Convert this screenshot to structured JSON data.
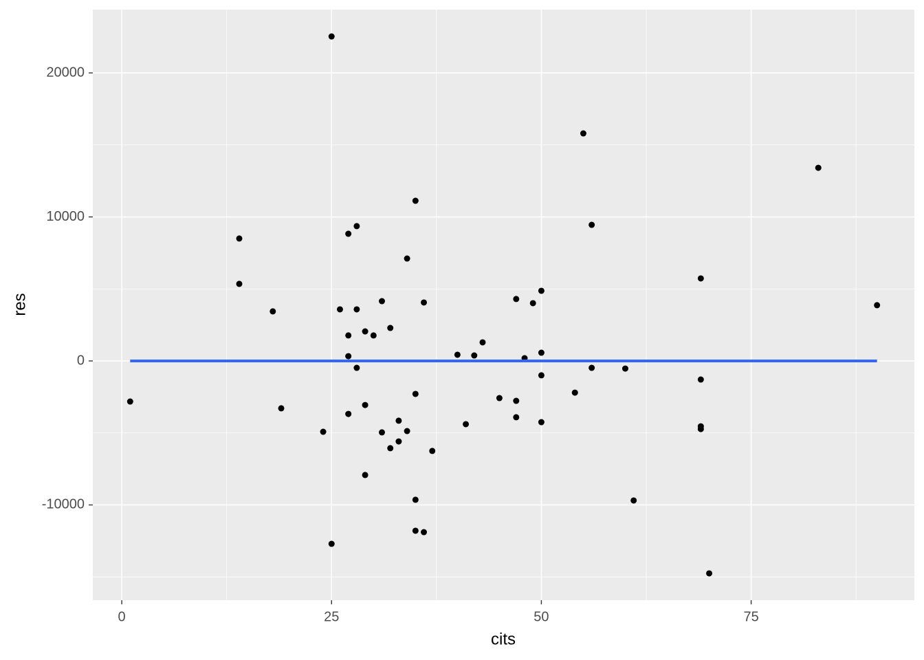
{
  "chart_data": {
    "type": "scatter",
    "x_label": "cits",
    "y_label": "res",
    "xlim": [
      -3.45,
      94.45
    ],
    "ylim": [
      -16614,
      24394
    ],
    "xticks": [
      0,
      25,
      50,
      75
    ],
    "yticks": [
      -10000,
      0,
      10000,
      20000
    ],
    "grid": true,
    "point_color": "#000000",
    "x": [
      1,
      14,
      14,
      18,
      19,
      24,
      25,
      25,
      26,
      27,
      27,
      27,
      27,
      28,
      28,
      28,
      29,
      29,
      29,
      30,
      31,
      31,
      32,
      32,
      33,
      33,
      34,
      34,
      35,
      35,
      35,
      35,
      36,
      36,
      37,
      40,
      41,
      42,
      43,
      45,
      47,
      47,
      47,
      48,
      49,
      50,
      50,
      50,
      50,
      54,
      55,
      56,
      56,
      60,
      61,
      69,
      69,
      69,
      69,
      70,
      83,
      90
    ],
    "y": [
      -2820,
      8500,
      5350,
      3440,
      -3290,
      -4920,
      22530,
      -12700,
      3580,
      8830,
      1770,
      330,
      -3680,
      9360,
      3580,
      -480,
      2050,
      -3060,
      -7920,
      1770,
      4150,
      -4960,
      2290,
      -6060,
      -4150,
      -5590,
      7110,
      -4870,
      11120,
      -2290,
      -9640,
      -11790,
      4060,
      -11890,
      -6250,
      430,
      -4390,
      380,
      1290,
      -2580,
      4300,
      -2770,
      -3910,
      190,
      4010,
      4870,
      570,
      -1000,
      -4250,
      -2200,
      15800,
      9450,
      -480,
      -530,
      -9690,
      5730,
      -1290,
      -4540,
      -4730,
      -14750,
      13410,
      3870
    ],
    "line": {
      "x": [
        1,
        90
      ],
      "y": [
        0,
        0
      ],
      "color": "#3366FF"
    }
  }
}
